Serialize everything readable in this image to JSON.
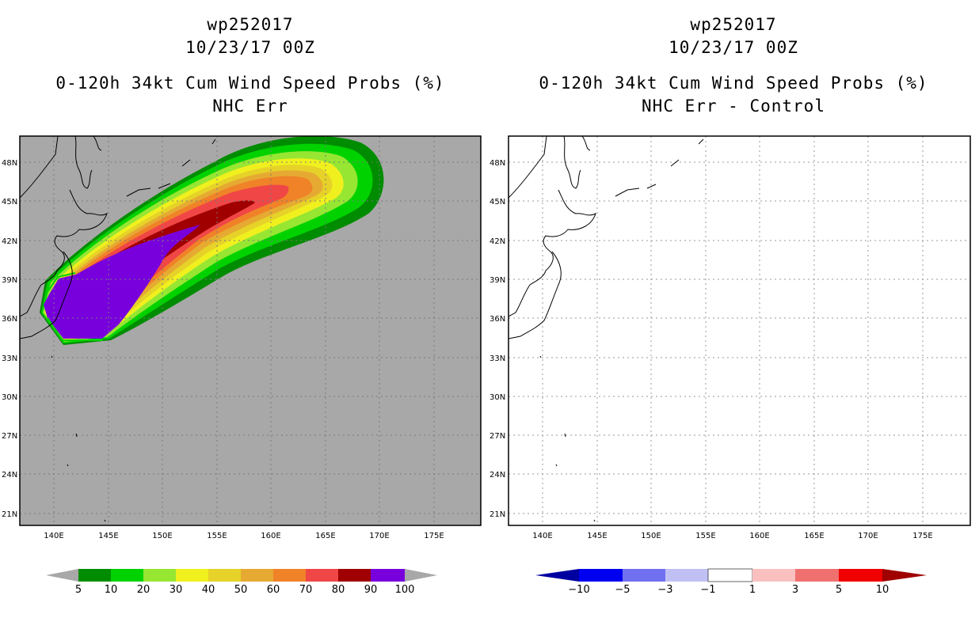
{
  "left_panel": {
    "storm_id": "wp252017",
    "datetime": "10/23/17 00Z",
    "product": "0-120h 34kt Cum Wind Speed Probs (%)",
    "subtitle": "NHC Err"
  },
  "right_panel": {
    "storm_id": "wp252017",
    "datetime": "10/23/17 00Z",
    "product": "0-120h 34kt Cum Wind Speed Probs (%)",
    "subtitle": "NHC Err - Control"
  },
  "axes": {
    "lat_labels": [
      "48N",
      "45N",
      "42N",
      "39N",
      "36N",
      "33N",
      "30N",
      "27N",
      "24N",
      "21N"
    ],
    "lon_labels": [
      "140E",
      "145E",
      "150E",
      "155E",
      "160E",
      "165E",
      "170E",
      "175E"
    ]
  },
  "colors": {
    "ocean_gray": "#a8a8a8",
    "prob_bins": [
      "#008c00",
      "#00d200",
      "#96e632",
      "#f0f01e",
      "#e6d228",
      "#e6aa32",
      "#f08228",
      "#f04646",
      "#a00000",
      "#7800dc"
    ],
    "diff_bins": [
      "#0000a0",
      "#0000f0",
      "#7070f0",
      "#c0c0f5",
      "#ffffff",
      "#fac0c0",
      "#f07070",
      "#f00000",
      "#a00000"
    ]
  },
  "left_colorbar": {
    "labels": [
      "5",
      "10",
      "20",
      "30",
      "40",
      "50",
      "60",
      "70",
      "80",
      "90",
      "100"
    ]
  },
  "right_colorbar": {
    "labels": [
      "−10",
      "−5",
      "−3",
      "−1",
      "1",
      "3",
      "5",
      "10"
    ]
  }
}
